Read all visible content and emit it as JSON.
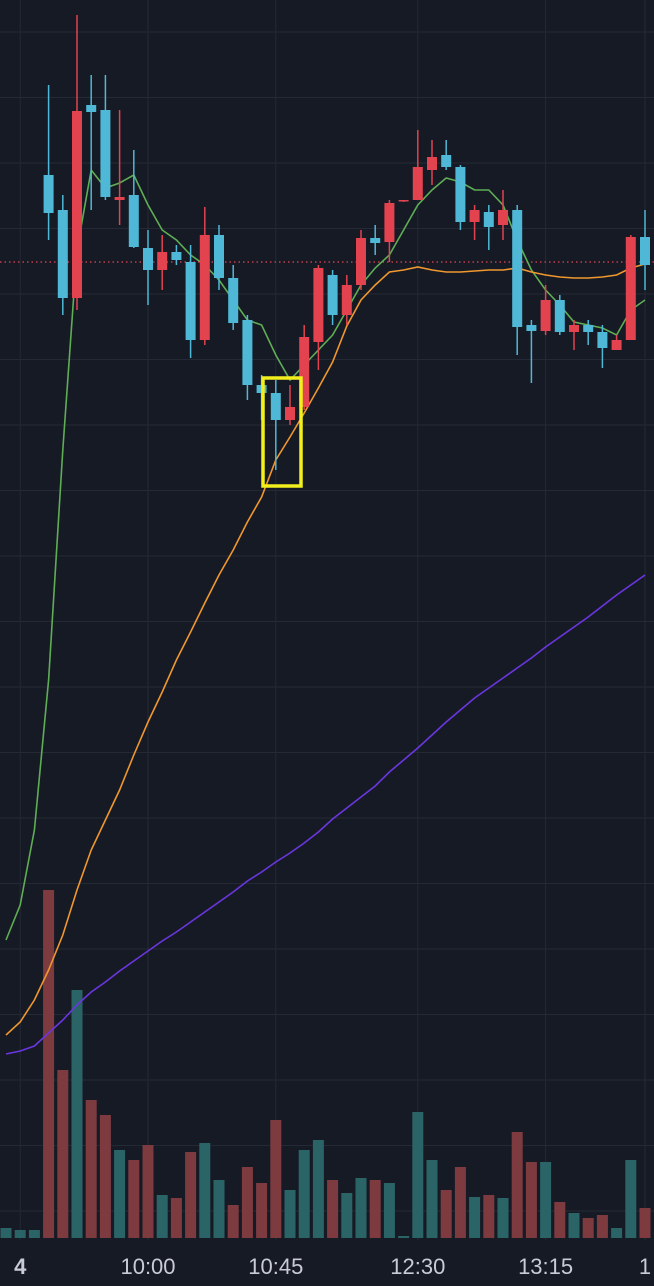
{
  "chart_data": {
    "type": "candlestick",
    "categories": [
      null,
      "4",
      null,
      null,
      null,
      null,
      null,
      null,
      null,
      null,
      "10:00",
      null,
      null,
      null,
      null,
      null,
      null,
      null,
      null,
      "10:45",
      null,
      null,
      null,
      null,
      null,
      null,
      null,
      null,
      null,
      "12:30",
      null,
      null,
      null,
      null,
      null,
      null,
      null,
      null,
      "13:15",
      null,
      null,
      null,
      null,
      null,
      null,
      "1"
    ],
    "ylim": [
      0,
      1240
    ],
    "open": [
      null,
      null,
      null,
      1027,
      942,
      1129,
      1128,
      1043,
      1043,
      993,
      970,
      988,
      980,
      900,
      1005,
      962,
      917,
      855,
      847,
      820,
      833,
      903,
      972,
      925,
      955,
      1002,
      997,
      1037,
      1040,
      1073,
      1083,
      1073,
      1018,
      1030,
      1013,
      1030,
      913,
      909,
      940,
      908,
      915,
      908,
      892,
      900,
      1003,
      975
    ],
    "high": [
      null,
      null,
      null,
      1155,
      1045,
      1225,
      1165,
      1165,
      1130,
      1090,
      1010,
      1005,
      995,
      995,
      1033,
      1015,
      975,
      925,
      865,
      860,
      855,
      915,
      975,
      970,
      965,
      1010,
      1015,
      1040,
      1040,
      1110,
      1100,
      1100,
      1075,
      1035,
      1035,
      1050,
      1035,
      920,
      955,
      945,
      920,
      920,
      915,
      905,
      1005,
      1030
    ],
    "low": [
      null,
      null,
      null,
      1000,
      925,
      930,
      1030,
      1040,
      1015,
      992,
      935,
      950,
      975,
      882,
      895,
      950,
      910,
      840,
      820,
      770,
      815,
      830,
      870,
      915,
      915,
      950,
      985,
      978,
      1038,
      1040,
      1055,
      1070,
      1010,
      1000,
      990,
      1000,
      885,
      857,
      905,
      905,
      890,
      895,
      872,
      890,
      900,
      950
    ],
    "close": [
      null,
      null,
      null,
      1065,
      1030,
      942,
      1135,
      1130,
      1040,
      1045,
      992,
      970,
      988,
      978,
      900,
      1005,
      962,
      920,
      855,
      847,
      820,
      833,
      898,
      965,
      925,
      955,
      1002,
      998,
      1039,
      1040,
      1070,
      1085,
      1073,
      1018,
      1028,
      1015,
      1030,
      915,
      909,
      940,
      908,
      915,
      908,
      890,
      900,
      1003
    ],
    "up_color": "#4fb8d6",
    "down_color": "#e2434f",
    "lines": [
      {
        "color": "#5fae55",
        "values": [
          300,
          335,
          410,
          560,
          790,
          990,
          1070,
          1052,
          1057,
          1065,
          1035,
          1010,
          1000,
          985,
          975,
          960,
          940,
          920,
          915,
          885,
          860,
          875,
          890,
          905,
          930,
          955,
          972,
          985,
          1010,
          1035,
          1050,
          1062,
          1058,
          1050,
          1050,
          1035,
          1000,
          970,
          950,
          935,
          918,
          915,
          912,
          905,
          930,
          940
        ]
      },
      {
        "color": "#f0972e",
        "values": [
          205,
          218,
          240,
          270,
          305,
          350,
          390,
          420,
          450,
          485,
          518,
          548,
          580,
          608,
          637,
          665,
          690,
          718,
          743,
          780,
          803,
          827,
          852,
          878,
          914,
          940,
          955,
          968,
          970,
          973,
          970,
          968,
          968,
          969,
          970,
          970,
          972,
          968,
          965,
          963,
          962,
          962,
          963,
          965,
          972,
          976
        ]
      },
      {
        "color": "#6a36e0",
        "values": [
          186,
          189,
          194,
          207,
          220,
          235,
          248,
          258,
          269,
          279,
          289,
          299,
          308,
          318,
          328,
          338,
          348,
          359,
          368,
          378,
          387,
          397,
          408,
          421,
          432,
          443,
          454,
          468,
          480,
          492,
          505,
          518,
          530,
          542,
          552,
          562,
          572,
          582,
          593,
          603,
          613,
          623,
          634,
          645,
          655,
          665
        ]
      }
    ],
    "price_line": {
      "value": 978,
      "color": "#e2434f"
    },
    "volume": {
      "ylim": [
        0,
        400
      ],
      "values": [
        10,
        8,
        8,
        348,
        168,
        248,
        138,
        123,
        88,
        78,
        93,
        43,
        40,
        86,
        95,
        58,
        33,
        71,
        55,
        118,
        48,
        88,
        98,
        58,
        45,
        60,
        58,
        55,
        2,
        126,
        78,
        48,
        71,
        41,
        43,
        40,
        106,
        76,
        76,
        36,
        25,
        20,
        23,
        10,
        78,
        30
      ],
      "colors": [
        "#2a6467",
        "#2a6467",
        "#2a6467",
        "#7d3b40",
        "#7d3b40",
        "#2a6467",
        "#7d3b40",
        "#7d3b40",
        "#2a6467",
        "#7d3b40",
        "#7d3b40",
        "#2a6467",
        "#7d3b40",
        "#7d3b40",
        "#2a6467",
        "#2a6467",
        "#7d3b40",
        "#7d3b40",
        "#7d3b40",
        "#7d3b40",
        "#2a6467",
        "#2a6467",
        "#2a6467",
        "#7d3b40",
        "#2a6467",
        "#2a6467",
        "#7d3b40",
        "#2a6467",
        "#2a6467",
        "#2a6467",
        "#2a6467",
        "#7d3b40",
        "#7d3b40",
        "#2a6467",
        "#7d3b40",
        "#2a6467",
        "#7d3b40",
        "#7d3b40",
        "#2a6467",
        "#7d3b40",
        "#2a6467",
        "#7d3b40",
        "#7d3b40",
        "#2a6467",
        "#2a6467",
        "#7d3b40"
      ]
    },
    "grid": true
  }
}
